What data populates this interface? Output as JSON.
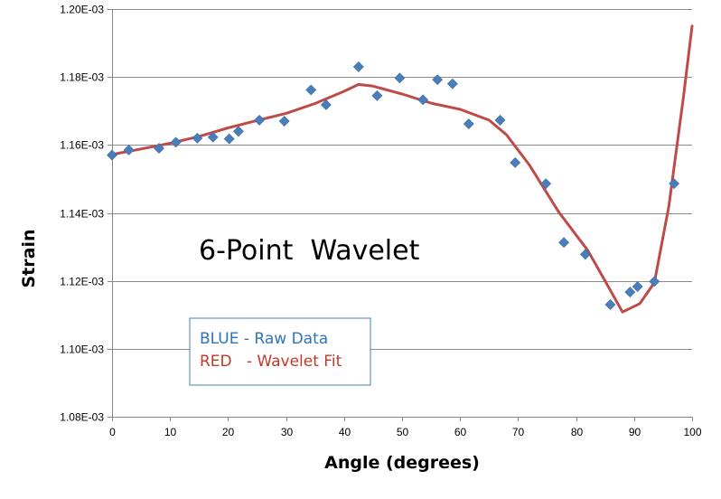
{
  "chart_data": {
    "type": "scatter",
    "xlabel": "Angle (degrees)",
    "ylabel": "Strain",
    "annotation": "6-Point  Wavelet",
    "xlim": [
      0,
      100
    ],
    "ylim": [
      0.00108,
      0.0012
    ],
    "x_ticks": [
      "0",
      "10",
      "20",
      "30",
      "40",
      "50",
      "60",
      "70",
      "80",
      "90",
      "100"
    ],
    "y_ticks": [
      "1.08E-03",
      "1.10E-03",
      "1.12E-03",
      "1.14E-03",
      "1.16E-03",
      "1.18E-03",
      "1.20E-03"
    ],
    "grid": "horizontal",
    "legend_box": {
      "line1": "BLUE - Raw Data",
      "line2": "RED   - Wavelet Fit",
      "line1_color": "#2e75b6",
      "line2_color": "#c0392b"
    },
    "series": [
      {
        "type": "scatter",
        "color": "#4a7ebb",
        "marker": "diamond",
        "x": [
          0,
          2.9,
          8.1,
          11.0,
          14.7,
          17.4,
          20.2,
          21.8,
          25.4,
          29.7,
          34.3,
          36.9,
          42.5,
          45.7,
          49.6,
          53.6,
          56.1,
          58.7,
          61.5,
          66.9,
          69.5,
          74.8,
          77.9,
          81.6,
          85.9,
          89.3,
          90.6,
          93.5,
          96.9
        ],
        "y": [
          0.001157,
          0.0011585,
          0.001159,
          0.0011608,
          0.001162,
          0.0011623,
          0.0011618,
          0.001164,
          0.0011673,
          0.001167,
          0.0011762,
          0.0011718,
          0.001183,
          0.0011745,
          0.0011797,
          0.0011733,
          0.0011792,
          0.001178,
          0.0011662,
          0.0011673,
          0.0011548,
          0.0011486,
          0.0011313,
          0.0011278,
          0.001113,
          0.0011167,
          0.0011183,
          0.0011198,
          0.0011486
        ]
      },
      {
        "type": "line",
        "color": "#be4b48",
        "x": [
          0,
          5,
          10,
          15,
          20,
          25,
          30,
          35,
          40,
          42.5,
          45,
          50,
          55,
          60,
          65,
          68,
          72,
          77,
          82,
          85,
          88,
          91,
          93.5,
          96,
          98.5,
          100
        ],
        "y": [
          0.0011572,
          0.0011588,
          0.0011605,
          0.0011625,
          0.001165,
          0.0011672,
          0.0011693,
          0.0011722,
          0.0011758,
          0.0011778,
          0.0011773,
          0.001175,
          0.0011723,
          0.0011705,
          0.0011673,
          0.001163,
          0.001154,
          0.0011403,
          0.001129,
          0.00112,
          0.0011108,
          0.0011133,
          0.0011195,
          0.001142,
          0.001174,
          0.001195
        ]
      }
    ]
  }
}
